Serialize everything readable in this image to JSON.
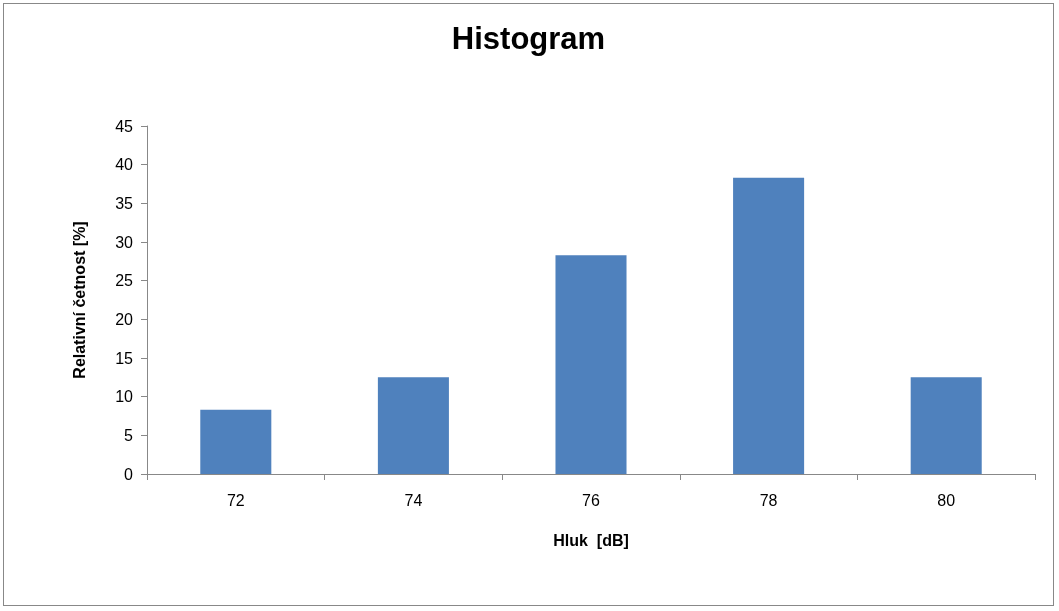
{
  "chart_data": {
    "type": "bar",
    "title": "Histogram",
    "xlabel": "Hluk  [dB]",
    "ylabel": "Relativní četnost [%]",
    "categories": [
      "72",
      "74",
      "76",
      "78",
      "80"
    ],
    "values": [
      8.3,
      12.5,
      28.3,
      38.3,
      12.5
    ],
    "color": "#4f81bd",
    "ylim": [
      0,
      45
    ],
    "yticks": [
      0,
      5,
      10,
      15,
      20,
      25,
      30,
      35,
      40,
      45
    ],
    "grid": false
  }
}
